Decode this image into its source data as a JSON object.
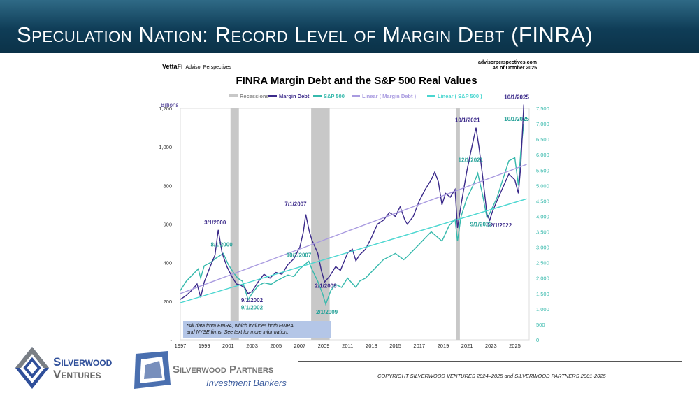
{
  "slide": {
    "title": "Speculation Nation: Record Level of Margin Debt (FINRA)",
    "copyright": "COPYRIGHT SILVERWOOD VENTURES 2024–2025 and SILVERWOOD PARTNERS 2001-2025"
  },
  "logos": {
    "ventures": [
      "Silverwood",
      "Ventures"
    ],
    "partners": "Silverwood Partners",
    "partners_sub": "Investment Bankers",
    "vettafi": "VettaFi",
    "vettafi_sub": "Advisor Perspectives"
  },
  "source": {
    "site": "advisorperspectives.com",
    "asof": "As of October 2025"
  },
  "colors": {
    "margin": "#3b2a8a",
    "sp": "#36b9ac",
    "margin_trend": "#a99be0",
    "sp_trend": "#49d6d0",
    "recession": "#c8c8c8"
  },
  "chart_data": {
    "type": "line",
    "title": "FINRA Margin Debt and the S&P 500 Real Values",
    "ylabel": "Billions",
    "legend": [
      "Recessions",
      "Margin Debt",
      "S&P 500",
      "Linear ( Margin Debt )",
      "Linear ( S&P 500 )"
    ],
    "legend_position": "top",
    "xlim": [
      1997,
      2026.2
    ],
    "ylim": [
      0,
      1200
    ],
    "y2lim": [
      0,
      7500
    ],
    "x_ticks": [
      "1997",
      "1999",
      "2001",
      "2003",
      "2005",
      "2007",
      "2009",
      "2011",
      "2013",
      "2015",
      "2017",
      "2019",
      "2021",
      "2023",
      "2025"
    ],
    "y_ticks": [
      "-",
      "200",
      "400",
      "600",
      "800",
      "1,000",
      "1,200"
    ],
    "y2_ticks": [
      "0",
      "500",
      "1,000",
      "1,500",
      "2,000",
      "2,500",
      "3,000",
      "3,500",
      "4,000",
      "4,500",
      "5,000",
      "5,500",
      "6,000",
      "6,500",
      "7,000",
      "7,500"
    ],
    "recessions": [
      [
        2001.2,
        2001.9
      ],
      [
        2007.95,
        2009.5
      ],
      [
        2020.1,
        2020.4
      ]
    ],
    "margin_debt": [
      [
        1997,
        210
      ],
      [
        1997.5,
        230
      ],
      [
        1998,
        260
      ],
      [
        1998.4,
        290
      ],
      [
        1998.7,
        220
      ],
      [
        1999,
        300
      ],
      [
        1999.5,
        380
      ],
      [
        1999.9,
        440
      ],
      [
        2000.17,
        570
      ],
      [
        2000.5,
        450
      ],
      [
        2000.9,
        380
      ],
      [
        2001.3,
        330
      ],
      [
        2001.7,
        290
      ],
      [
        2002,
        285
      ],
      [
        2002.4,
        270
      ],
      [
        2002.67,
        240
      ],
      [
        2003,
        250
      ],
      [
        2003.5,
        300
      ],
      [
        2004,
        340
      ],
      [
        2004.5,
        320
      ],
      [
        2005,
        350
      ],
      [
        2005.5,
        340
      ],
      [
        2006,
        390
      ],
      [
        2006.5,
        420
      ],
      [
        2007,
        480
      ],
      [
        2007.3,
        560
      ],
      [
        2007.5,
        650
      ],
      [
        2007.8,
        560
      ],
      [
        2008,
        520
      ],
      [
        2008.5,
        450
      ],
      [
        2008.8,
        360
      ],
      [
        2009.08,
        300
      ],
      [
        2009.5,
        330
      ],
      [
        2010,
        380
      ],
      [
        2010.4,
        360
      ],
      [
        2011,
        450
      ],
      [
        2011.4,
        470
      ],
      [
        2011.7,
        410
      ],
      [
        2012,
        440
      ],
      [
        2012.5,
        470
      ],
      [
        2013,
        530
      ],
      [
        2013.5,
        600
      ],
      [
        2014,
        620
      ],
      [
        2014.5,
        660
      ],
      [
        2015,
        640
      ],
      [
        2015.4,
        690
      ],
      [
        2015.8,
        620
      ],
      [
        2016,
        600
      ],
      [
        2016.5,
        640
      ],
      [
        2017,
        720
      ],
      [
        2017.5,
        780
      ],
      [
        2018,
        830
      ],
      [
        2018.3,
        870
      ],
      [
        2018.6,
        820
      ],
      [
        2018.9,
        700
      ],
      [
        2019.2,
        760
      ],
      [
        2019.6,
        740
      ],
      [
        2020,
        780
      ],
      [
        2020.2,
        580
      ],
      [
        2020.5,
        700
      ],
      [
        2021,
        880
      ],
      [
        2021.4,
        1000
      ],
      [
        2021.75,
        1100
      ],
      [
        2022,
        1000
      ],
      [
        2022.3,
        850
      ],
      [
        2022.67,
        650
      ],
      [
        2022.9,
        620
      ],
      [
        2023.1,
        660
      ],
      [
        2023.5,
        720
      ],
      [
        2024,
        790
      ],
      [
        2024.5,
        860
      ],
      [
        2025,
        830
      ],
      [
        2025.3,
        760
      ],
      [
        2025.5,
        900
      ],
      [
        2025.75,
        1220
      ]
    ],
    "sp500": [
      [
        1997,
        1600
      ],
      [
        1997.5,
        1900
      ],
      [
        1998,
        2100
      ],
      [
        1998.5,
        2300
      ],
      [
        1998.7,
        2000
      ],
      [
        1999,
        2400
      ],
      [
        1999.5,
        2500
      ],
      [
        2000,
        2650
      ],
      [
        2000.6,
        2800
      ],
      [
        2001,
        2450
      ],
      [
        2001.5,
        2150
      ],
      [
        2001.8,
        2000
      ],
      [
        2002.2,
        1900
      ],
      [
        2002.67,
        1300
      ],
      [
        2003,
        1500
      ],
      [
        2003.5,
        1750
      ],
      [
        2004,
        1850
      ],
      [
        2004.6,
        1800
      ],
      [
        2005,
        1900
      ],
      [
        2006,
        2100
      ],
      [
        2006.5,
        2050
      ],
      [
        2007,
        2300
      ],
      [
        2007.75,
        2550
      ],
      [
        2008,
        2300
      ],
      [
        2008.5,
        1900
      ],
      [
        2008.9,
        1500
      ],
      [
        2009.17,
        1150
      ],
      [
        2009.6,
        1600
      ],
      [
        2010,
        1800
      ],
      [
        2010.5,
        1700
      ],
      [
        2011,
        2000
      ],
      [
        2011.7,
        1700
      ],
      [
        2012,
        1900
      ],
      [
        2012.5,
        2000
      ],
      [
        2013,
        2200
      ],
      [
        2013.5,
        2400
      ],
      [
        2014,
        2600
      ],
      [
        2015,
        2800
      ],
      [
        2015.7,
        2600
      ],
      [
        2016,
        2700
      ],
      [
        2016.5,
        2900
      ],
      [
        2017,
        3100
      ],
      [
        2017.5,
        3300
      ],
      [
        2018,
        3500
      ],
      [
        2018.9,
        3200
      ],
      [
        2019.5,
        3700
      ],
      [
        2020,
        3900
      ],
      [
        2020.2,
        3200
      ],
      [
        2020.5,
        4000
      ],
      [
        2021,
        4600
      ],
      [
        2021.5,
        5000
      ],
      [
        2021.9,
        5400
      ],
      [
        2022.3,
        4700
      ],
      [
        2022.67,
        3950
      ],
      [
        2022.9,
        4100
      ],
      [
        2023.5,
        4600
      ],
      [
        2024,
        5200
      ],
      [
        2024.5,
        5800
      ],
      [
        2025,
        5900
      ],
      [
        2025.3,
        5000
      ],
      [
        2025.5,
        6100
      ],
      [
        2025.75,
        7000
      ]
    ],
    "margin_trend": [
      [
        1997,
        240
      ],
      [
        2026,
        910
      ]
    ],
    "sp_trend": [
      [
        1997,
        1200
      ],
      [
        2026,
        4570
      ]
    ],
    "annotations": [
      {
        "text": "3/1/2000",
        "series": "margin",
        "x": 2000.17,
        "y": 570
      },
      {
        "text": "8/1/2000",
        "series": "sp",
        "x": 2000.6,
        "y": 2800
      },
      {
        "text": "9/1/2002",
        "series": "margin",
        "x": 2002.67,
        "y": 240
      },
      {
        "text": "9/1/2002",
        "series": "sp",
        "x": 2002.67,
        "y": 1300
      },
      {
        "text": "7/1/2007",
        "series": "margin",
        "x": 2007.5,
        "y": 650
      },
      {
        "text": "10/1/2007",
        "series": "sp",
        "x": 2007.75,
        "y": 2550
      },
      {
        "text": "2/1/2009",
        "series": "margin",
        "x": 2009.08,
        "y": 300
      },
      {
        "text": "2/1/2009",
        "series": "sp",
        "x": 2009.17,
        "y": 1150
      },
      {
        "text": "10/1/2021",
        "series": "margin",
        "x": 2021.75,
        "y": 1100
      },
      {
        "text": "12/1/2021",
        "series": "sp",
        "x": 2021.9,
        "y": 5400
      },
      {
        "text": "9/1/2022",
        "series": "sp",
        "x": 2022.67,
        "y": 3950
      },
      {
        "text": "12/1/2022",
        "series": "margin",
        "x": 2022.9,
        "y": 620
      },
      {
        "text": "10/1/2025",
        "series": "margin",
        "x": 2025.75,
        "y": 1220
      },
      {
        "text": "10/1/2025",
        "series": "sp",
        "x": 2025.75,
        "y": 7000
      }
    ],
    "note": [
      "*All data from FINRA, which includes both FINRA",
      "and NYSE firms. See text for more information."
    ]
  }
}
